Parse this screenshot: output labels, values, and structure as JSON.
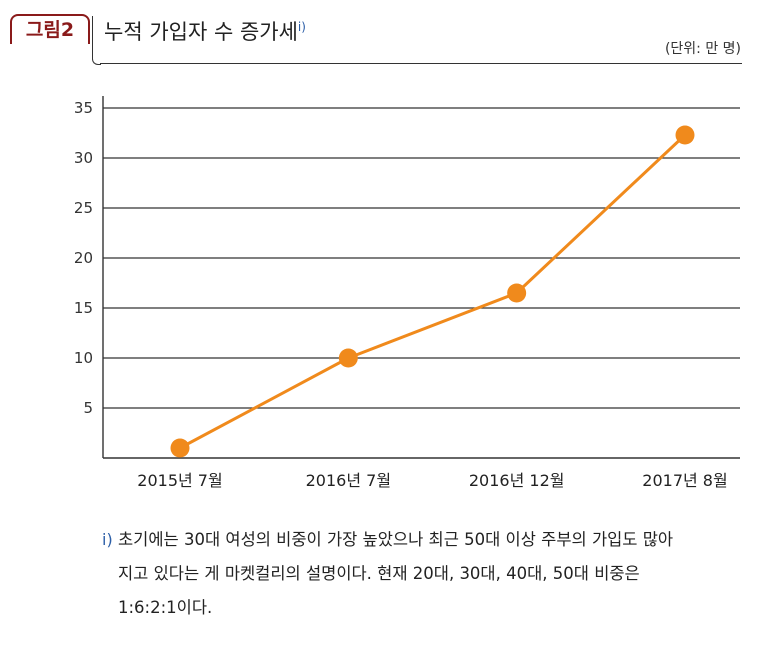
{
  "figure": {
    "label": "그림2",
    "title": "누적 가입자 수 증가세",
    "title_note_marker": "i)",
    "unit": "(단위: 만 명)"
  },
  "chart_data": {
    "type": "line",
    "title": "누적 가입자 수 증가세",
    "xlabel": "",
    "ylabel": "",
    "categories": [
      "2015년 7월",
      "2016년 7월",
      "2016년 12월",
      "2017년 8월"
    ],
    "series": [
      {
        "values": [
          1,
          10,
          16.5,
          32.3
        ]
      }
    ],
    "yticks": [
      "5",
      "10",
      "15",
      "20",
      "25",
      "30",
      "35"
    ],
    "ylim": [
      0,
      35
    ],
    "grid": true,
    "colors": {
      "line": "#f08a1c",
      "marker": "#f08a1c",
      "grid": "#333333"
    }
  },
  "footnote": {
    "marker": "i)",
    "lines": [
      "초기에는 30대 여성의 비중이 가장 높았으나 최근 50대 이상 주부의 가입도 많아",
      "지고 있다는 게 마켓컬리의 설명이다. 현재 20대, 30대, 40대, 50대 비중은",
      "1:6:2:1이다."
    ]
  }
}
